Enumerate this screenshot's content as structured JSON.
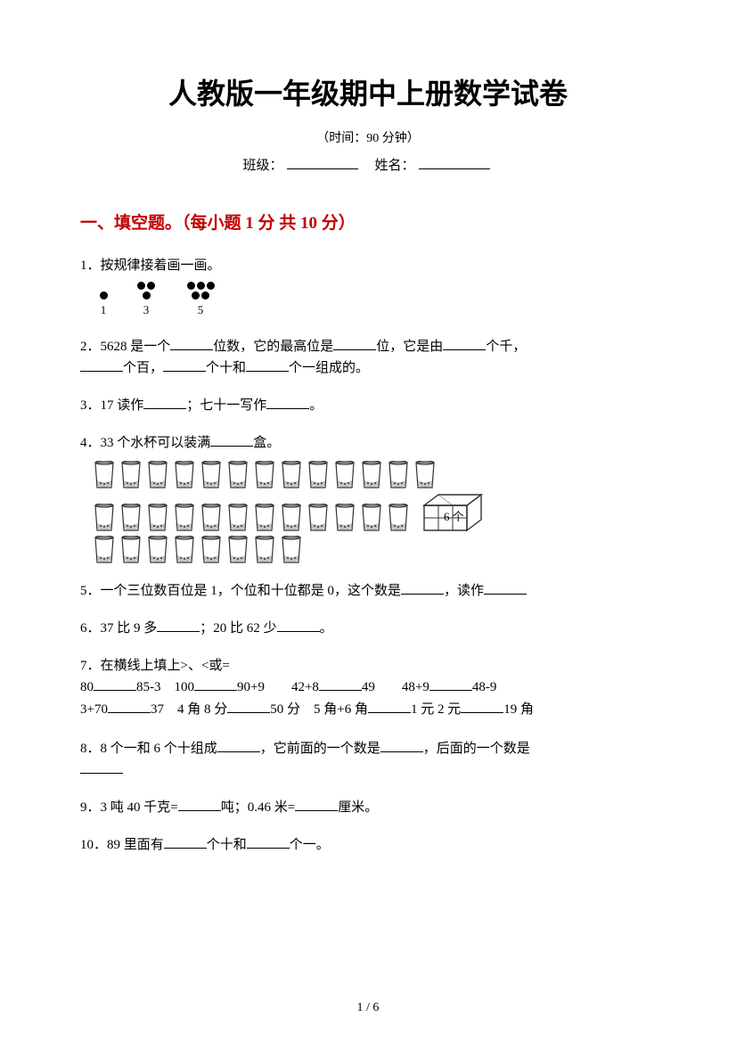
{
  "title": "人教版一年级期中上册数学试卷",
  "subtitle": "（时间：90 分钟）",
  "info": {
    "class_label": "班级：",
    "name_label": "姓名："
  },
  "section1": {
    "header": "一、填空题。（每小题 1 分  共 10 分）"
  },
  "q1": {
    "num": "1．",
    "text": "按规律接着画一画。",
    "labels": [
      "1",
      "3",
      "5"
    ]
  },
  "q2": {
    "num": "2．",
    "t1": "5628 是一个",
    "t2": "位数，它的最高位是",
    "t3": "位，它是由",
    "t4": "个千，",
    "t5": "个百，",
    "t6": "个十和",
    "t7": "个一组成的。"
  },
  "q3": {
    "num": "3．",
    "t1": "17 读作",
    "t2": "；七十一写作",
    "t3": "。"
  },
  "q4": {
    "num": "4．",
    "t1": "33 个水杯可以装满",
    "t2": "盒。",
    "box_label": "6 个"
  },
  "q5": {
    "num": "5．",
    "t1": "一个三位数百位是 1，个位和十位都是 0，这个数是",
    "t2": "，读作"
  },
  "q6": {
    "num": "6．",
    "t1": "37 比 9 多",
    "t2": "；20 比 62 少",
    "t3": "。"
  },
  "q7": {
    "num": "7．",
    "text": "在横线上填上>、<或=",
    "row1": {
      "a": "80",
      "b": "85-3　100",
      "c": "90+9　　42+8",
      "d": "49　　48+9",
      "e": "48-9"
    },
    "row2": {
      "a": "3+70",
      "b": "37　4 角 8 分",
      "c": "50 分　5 角+6 角",
      "d": "1 元  2 元",
      "e": "19 角"
    }
  },
  "q8": {
    "num": "8．",
    "t1": "8 个一和 6 个十组成",
    "t2": "，它前面的一个数是",
    "t3": "，后面的一个数是"
  },
  "q9": {
    "num": "9．",
    "t1": "3 吨 40 千克=",
    "t2": "吨；0.46 米=",
    "t3": "厘米。"
  },
  "q10": {
    "num": "10．",
    "t1": "89 里面有",
    "t2": "个十和",
    "t3": "个一。"
  },
  "footer": "1  /  6",
  "colors": {
    "section_header": "#c00000",
    "text": "#000000",
    "background": "#ffffff"
  }
}
